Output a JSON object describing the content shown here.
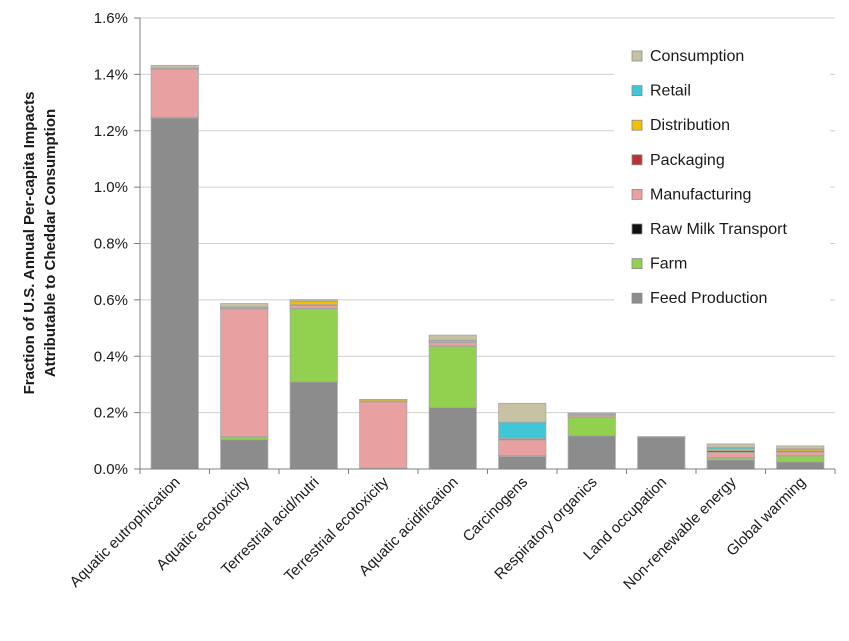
{
  "chart_data": {
    "type": "bar",
    "stacked": true,
    "ylabel_lines": [
      "Fraction of U.S. Annual Per-capita Impacts",
      "Attributable to Cheddar Consumption"
    ],
    "xlabel": "",
    "ylim": [
      0,
      0.016
    ],
    "y_ticks": [
      0,
      0.002,
      0.004,
      0.006,
      0.008,
      0.01,
      0.012,
      0.014,
      0.016
    ],
    "y_tick_labels": [
      "0.0%",
      "0.2%",
      "0.4%",
      "0.6%",
      "0.8%",
      "1.0%",
      "1.2%",
      "1.4%",
      "1.6%"
    ],
    "grid": true,
    "legend_position": "top-right",
    "categories": [
      "Aquatic eutrophication",
      "Aquatic ecotoxicity",
      "Terrestrial acid/nutri",
      "Terrestrial ecotoxicity",
      "Aquatic acidification",
      "Carcinogens",
      "Respiratory organics",
      "Land occupation",
      "Non-renewable energy",
      "Global warming"
    ],
    "series": [
      {
        "name": "Feed Production",
        "color": "#8c8c8c",
        "values": [
          0.01245,
          0.00104,
          0.00309,
          0.0,
          0.00218,
          0.00044,
          0.00118,
          0.00114,
          0.00032,
          0.00025
        ]
      },
      {
        "name": "Farm",
        "color": "#92d050",
        "values": [
          2e-05,
          0.0001,
          0.0026,
          3e-05,
          0.00218,
          3e-05,
          0.00066,
          1e-05,
          8e-05,
          0.00022
        ]
      },
      {
        "name": "Raw Milk Transport",
        "color": "#101010",
        "values": [
          1e-05,
          1e-05,
          1e-05,
          0.0,
          1e-05,
          1e-05,
          1e-05,
          0.0,
          1e-05,
          1e-05
        ]
      },
      {
        "name": "Manufacturing",
        "color": "#e8a0a0",
        "values": [
          0.0017,
          0.00453,
          0.0001,
          0.00235,
          0.00012,
          0.00055,
          5e-05,
          0.0,
          0.00018,
          0.00012
        ]
      },
      {
        "name": "Packaging",
        "color": "#b83434",
        "values": [
          2e-05,
          2e-05,
          3e-05,
          2e-05,
          2e-05,
          4e-05,
          2e-05,
          0.0,
          6e-05,
          4e-05
        ]
      },
      {
        "name": "Distribution",
        "color": "#f2c000",
        "values": [
          2e-05,
          4e-05,
          0.00012,
          5e-05,
          5e-05,
          3e-05,
          3e-05,
          0.0,
          6e-05,
          5e-05
        ]
      },
      {
        "name": "Retail",
        "color": "#3fc7d8",
        "values": [
          1e-05,
          1e-05,
          1e-05,
          0.0,
          1e-05,
          0.00056,
          1e-05,
          0.0,
          6e-05,
          3e-05
        ]
      },
      {
        "name": "Consumption",
        "color": "#c8c2a4",
        "values": [
          9e-05,
          0.00012,
          5e-05,
          2e-05,
          0.00018,
          0.00067,
          3e-05,
          0.0,
          0.00012,
          0.0001
        ]
      }
    ]
  }
}
